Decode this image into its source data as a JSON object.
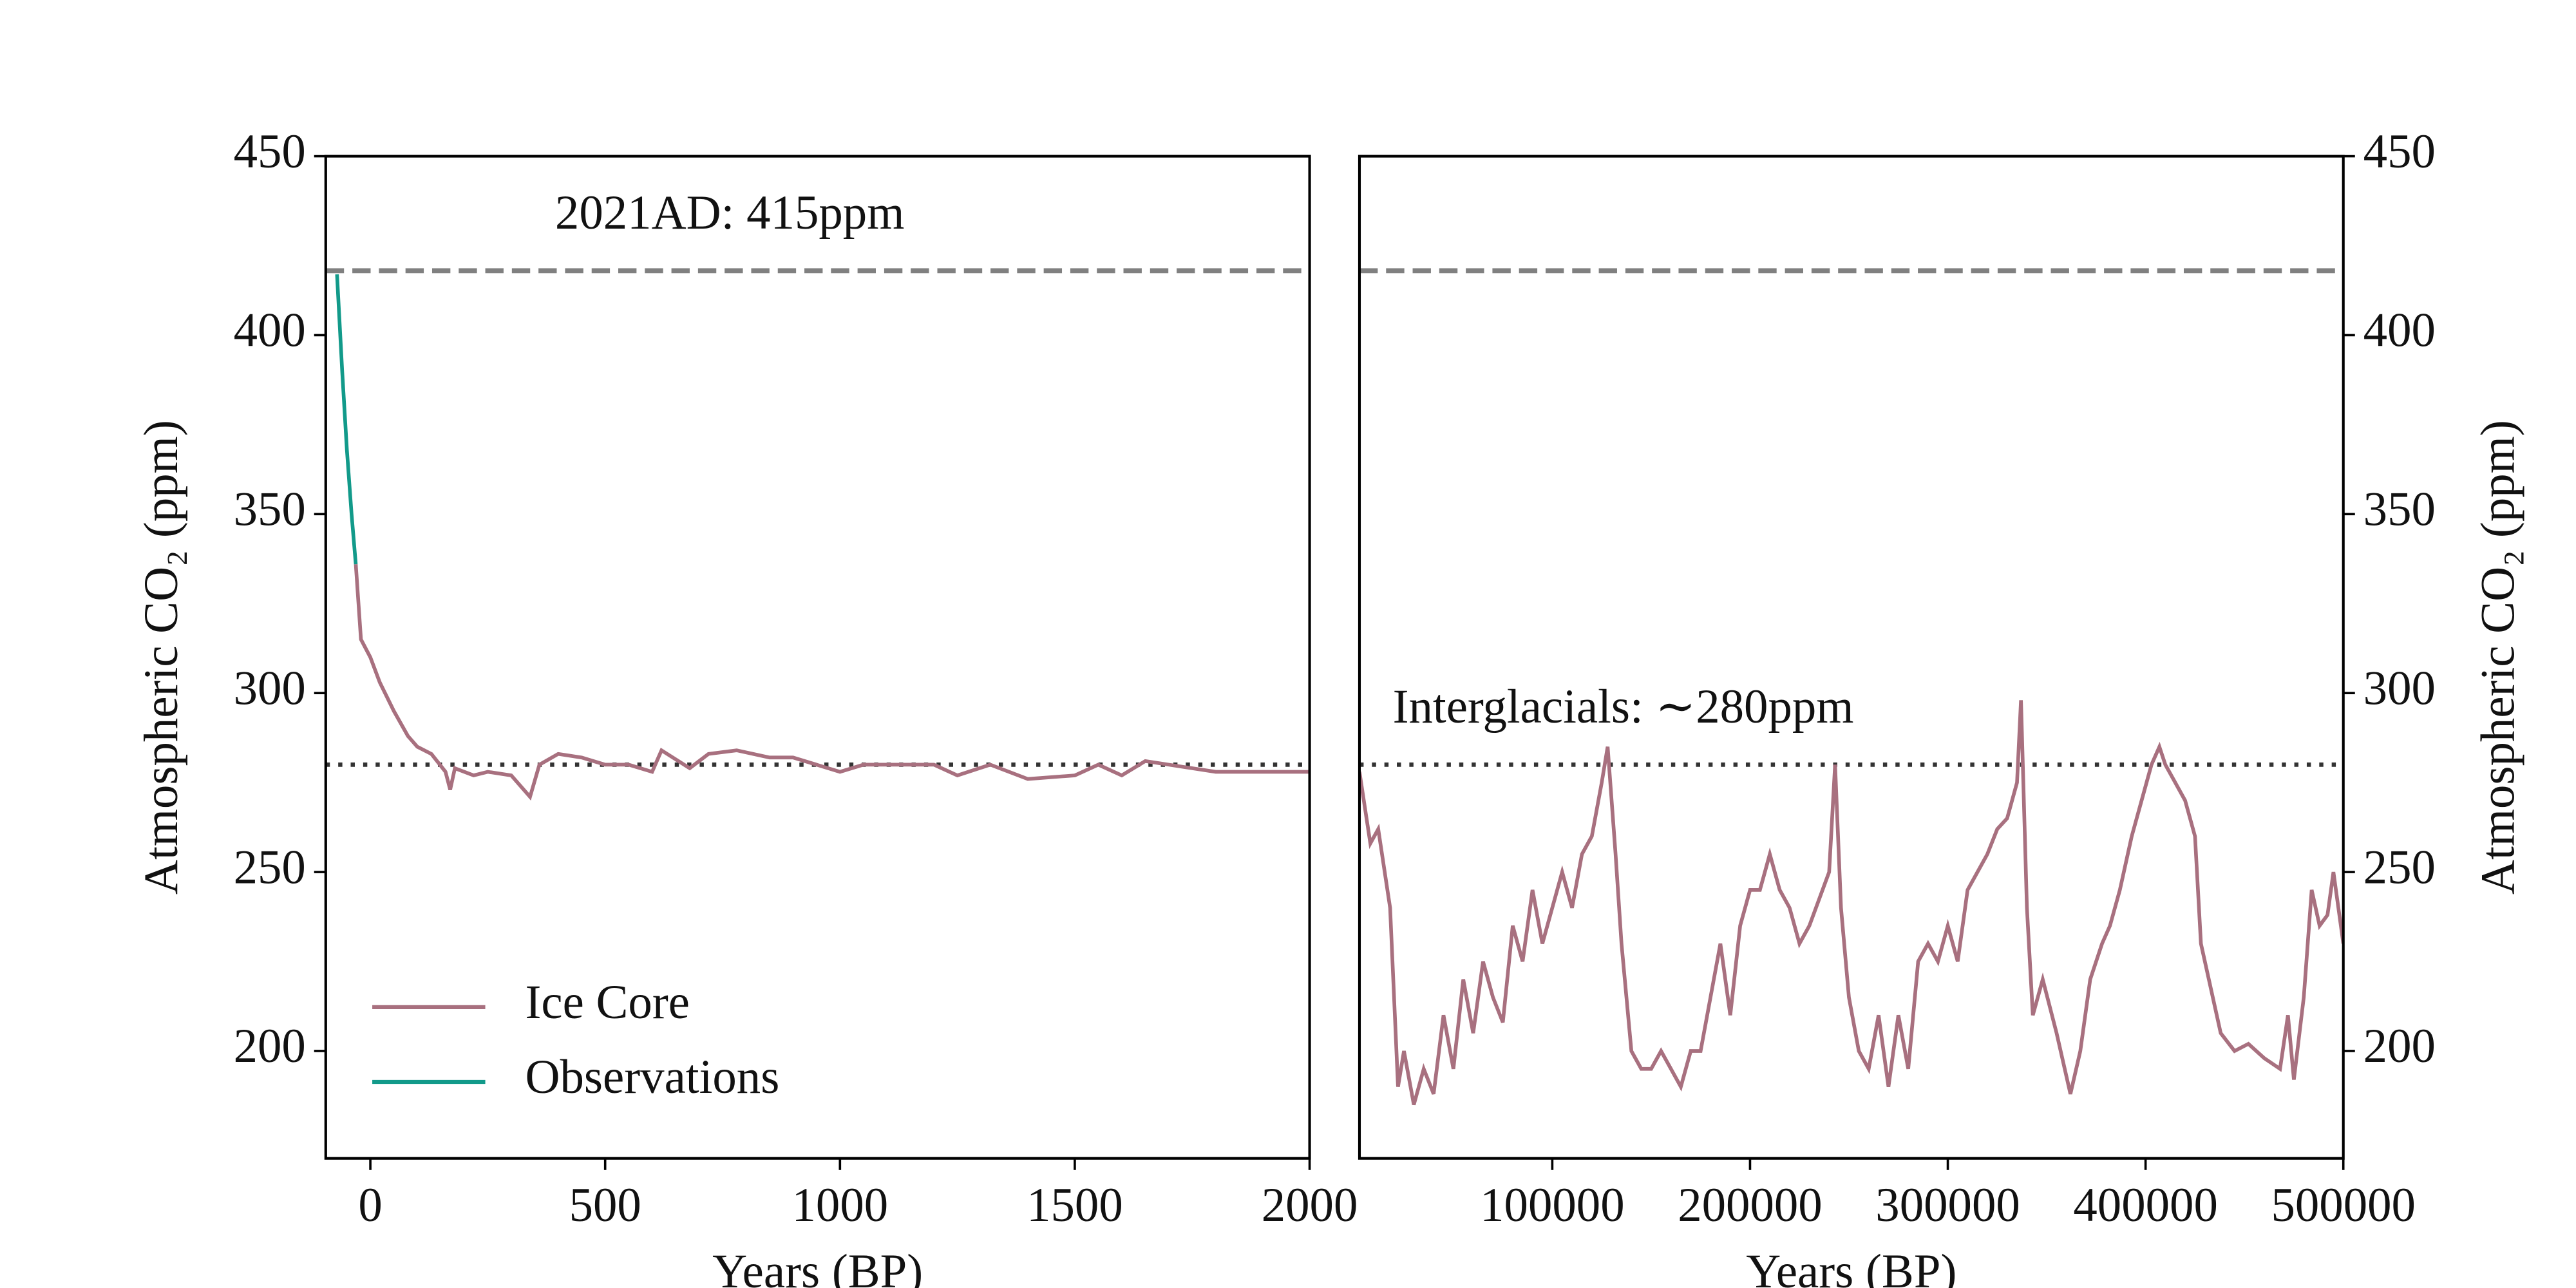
{
  "chart_data": [
    {
      "type": "line",
      "x_label": "Years (BP)",
      "y_label": "Atmospheric CO₂ (ppm)",
      "y_axis_side": "left",
      "xlim": [
        -95,
        2000
      ],
      "ylim": [
        170,
        450
      ],
      "xticks": [
        0,
        500,
        1000,
        1500,
        2000
      ],
      "yticks": [
        200,
        250,
        300,
        350,
        400,
        450
      ],
      "reference_lines": [
        {
          "value": 418,
          "style": "dashed",
          "color": "#808080"
        },
        {
          "value": 280,
          "style": "dotted",
          "color": "#333333"
        }
      ],
      "annotation": "2021AD: 415ppm",
      "legend": "lower left",
      "series": [
        {
          "name": "Ice Core",
          "color": "#a8707f",
          "x": [
            -31,
            -20,
            0,
            20,
            50,
            80,
            100,
            130,
            160,
            170,
            180,
            220,
            250,
            300,
            340,
            360,
            400,
            450,
            500,
            550,
            600,
            620,
            680,
            720,
            780,
            850,
            900,
            950,
            1000,
            1050,
            1100,
            1200,
            1250,
            1320,
            1400,
            1500,
            1550,
            1600,
            1650,
            1700,
            1800,
            1900,
            2000
          ],
          "values": [
            336,
            315,
            310,
            303,
            295,
            288,
            285,
            283,
            278,
            273,
            279,
            277,
            278,
            277,
            271,
            280,
            283,
            282,
            280,
            280,
            278,
            284,
            279,
            283,
            284,
            282,
            282,
            280,
            278,
            280,
            280,
            280,
            277,
            280,
            276,
            277,
            280,
            277,
            281,
            280,
            278,
            278,
            278
          ]
        },
        {
          "name": "Observations",
          "color": "#129a8a",
          "x": [
            -71,
            -60,
            -50,
            -40,
            -31
          ],
          "values": [
            417,
            390,
            368,
            350,
            336
          ]
        }
      ]
    },
    {
      "type": "line",
      "x_label": "Years (BP)",
      "y_label": "Atmospheric CO₂ (ppm)",
      "y_axis_side": "right",
      "xlim": [
        2500,
        500000
      ],
      "ylim": [
        170,
        450
      ],
      "xticks": [
        100000,
        200000,
        300000,
        400000,
        500000
      ],
      "yticks": [
        200,
        250,
        300,
        350,
        400,
        450
      ],
      "reference_lines": [
        {
          "value": 418,
          "style": "dashed",
          "color": "#808080"
        },
        {
          "value": 280,
          "style": "dotted",
          "color": "#333333"
        }
      ],
      "annotation": "Interglacials: ∼280ppm",
      "series": [
        {
          "name": "Ice Core",
          "color": "#a8707f",
          "x": [
            2500,
            8000,
            12000,
            18000,
            22000,
            25000,
            30000,
            35000,
            40000,
            45000,
            50000,
            55000,
            60000,
            65000,
            70000,
            75000,
            80000,
            85000,
            90000,
            95000,
            100000,
            105000,
            110000,
            115000,
            120000,
            125000,
            128000,
            132000,
            135000,
            140000,
            145000,
            150000,
            155000,
            160000,
            165000,
            170000,
            175000,
            180000,
            185000,
            190000,
            195000,
            200000,
            205000,
            210000,
            215000,
            220000,
            225000,
            230000,
            240000,
            243000,
            246000,
            250000,
            255000,
            260000,
            265000,
            270000,
            275000,
            280000,
            285000,
            290000,
            295000,
            300000,
            305000,
            310000,
            315000,
            320000,
            325000,
            330000,
            335000,
            337000,
            340000,
            343000,
            348000,
            355000,
            362000,
            367000,
            372000,
            378000,
            382000,
            387000,
            393000,
            398000,
            403000,
            407000,
            410000,
            415000,
            420000,
            425000,
            428000,
            432000,
            438000,
            445000,
            452000,
            460000,
            468000,
            472000,
            475000,
            480000,
            484000,
            488000,
            492000,
            495000,
            500000
          ],
          "values": [
            278,
            258,
            262,
            240,
            190,
            200,
            185,
            195,
            188,
            210,
            195,
            220,
            205,
            225,
            215,
            208,
            235,
            225,
            245,
            230,
            240,
            250,
            240,
            255,
            260,
            275,
            285,
            255,
            230,
            200,
            195,
            195,
            200,
            195,
            190,
            200,
            200,
            215,
            230,
            210,
            235,
            245,
            245,
            255,
            245,
            240,
            230,
            235,
            250,
            280,
            240,
            215,
            200,
            195,
            210,
            190,
            210,
            195,
            225,
            230,
            225,
            235,
            225,
            245,
            250,
            255,
            262,
            265,
            275,
            298,
            240,
            210,
            220,
            205,
            188,
            200,
            220,
            230,
            235,
            245,
            260,
            270,
            280,
            285,
            280,
            275,
            270,
            260,
            230,
            220,
            205,
            200,
            202,
            198,
            195,
            210,
            192,
            215,
            245,
            235,
            238,
            250,
            230
          ]
        }
      ]
    }
  ]
}
